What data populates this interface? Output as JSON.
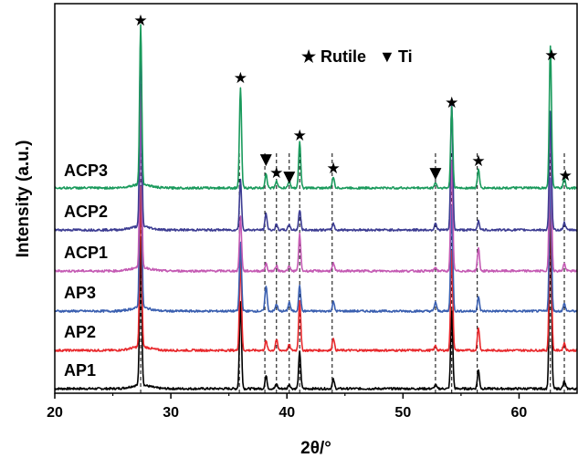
{
  "chart_data": {
    "type": "line",
    "title": "",
    "xlabel": "2θ/°",
    "ylabel": "Intensity (a.u.)",
    "xlim": [
      20,
      65
    ],
    "xticks": [
      20,
      30,
      40,
      50,
      60
    ],
    "yticks_shown": false,
    "legend": {
      "placement": "top-center",
      "entries": [
        {
          "symbol": "★",
          "label": "Rutile"
        },
        {
          "symbol": "▼",
          "label": "Ti"
        }
      ]
    },
    "reference_lines_2theta": [
      27.4,
      35.9,
      38.1,
      39.1,
      40.2,
      41.1,
      43.9,
      52.8,
      54.2,
      56.4,
      62.7,
      63.9
    ],
    "phase_markers": [
      {
        "symbol": "★",
        "phase": "Rutile",
        "x": 27.4
      },
      {
        "symbol": "★",
        "phase": "Rutile",
        "x": 36.0
      },
      {
        "symbol": "▼",
        "phase": "Ti",
        "x": 38.2
      },
      {
        "symbol": "★",
        "phase": "Rutile",
        "x": 39.1
      },
      {
        "symbol": "▼",
        "phase": "Ti",
        "x": 40.2
      },
      {
        "symbol": "★",
        "phase": "Rutile",
        "x": 41.1
      },
      {
        "symbol": "★",
        "phase": "Rutile",
        "x": 44.0
      },
      {
        "symbol": "▼",
        "phase": "Ti",
        "x": 52.8
      },
      {
        "symbol": "★",
        "phase": "Rutile",
        "x": 54.2
      },
      {
        "symbol": "★",
        "phase": "Rutile",
        "x": 56.5
      },
      {
        "symbol": "★",
        "phase": "Rutile",
        "x": 62.8
      },
      {
        "symbol": "★",
        "phase": "Rutile",
        "x": 64.0
      }
    ],
    "series": [
      {
        "name": "AP1",
        "color": "#000000",
        "peaks": [
          [
            27.4,
            160
          ],
          [
            36.0,
            95
          ],
          [
            38.2,
            14
          ],
          [
            39.1,
            5
          ],
          [
            40.2,
            5
          ],
          [
            41.1,
            40
          ],
          [
            44.0,
            10
          ],
          [
            52.8,
            4
          ],
          [
            54.2,
            85
          ],
          [
            56.5,
            20
          ],
          [
            62.7,
            190
          ],
          [
            63.9,
            8
          ]
        ]
      },
      {
        "name": "AP2",
        "color": "#e8282c",
        "peaks": [
          [
            27.4,
            175
          ],
          [
            36.0,
            100
          ],
          [
            38.2,
            10
          ],
          [
            39.1,
            12
          ],
          [
            40.2,
            6
          ],
          [
            41.1,
            55
          ],
          [
            44.0,
            14
          ],
          [
            52.8,
            5
          ],
          [
            54.2,
            110
          ],
          [
            56.5,
            25
          ],
          [
            62.7,
            170
          ],
          [
            63.9,
            8
          ]
        ]
      },
      {
        "name": "AP3",
        "color": "#3a5fb0",
        "peaks": [
          [
            27.4,
            225
          ],
          [
            36.0,
            75
          ],
          [
            38.2,
            28
          ],
          [
            39.1,
            8
          ],
          [
            40.2,
            10
          ],
          [
            41.1,
            28
          ],
          [
            44.0,
            10
          ],
          [
            52.8,
            10
          ],
          [
            54.2,
            115
          ],
          [
            56.5,
            15
          ],
          [
            62.7,
            145
          ],
          [
            63.9,
            8
          ]
        ]
      },
      {
        "name": "ACP1",
        "color": "#c45ab3",
        "peaks": [
          [
            27.4,
            200
          ],
          [
            36.0,
            60
          ],
          [
            38.2,
            8
          ],
          [
            39.1,
            6
          ],
          [
            40.2,
            5
          ],
          [
            41.1,
            40
          ],
          [
            44.0,
            8
          ],
          [
            52.8,
            4
          ],
          [
            54.2,
            120
          ],
          [
            56.5,
            25
          ],
          [
            62.7,
            170
          ],
          [
            63.9,
            8
          ]
        ]
      },
      {
        "name": "ACP2",
        "color": "#3c3c92",
        "peaks": [
          [
            27.4,
            210
          ],
          [
            36.0,
            55
          ],
          [
            38.2,
            18
          ],
          [
            39.1,
            6
          ],
          [
            40.2,
            6
          ],
          [
            41.1,
            22
          ],
          [
            44.0,
            7
          ],
          [
            52.8,
            8
          ],
          [
            54.2,
            140
          ],
          [
            56.5,
            10
          ],
          [
            62.7,
            130
          ],
          [
            63.9,
            8
          ]
        ]
      },
      {
        "name": "ACP3",
        "color": "#1a9a5c",
        "peaks": [
          [
            27.4,
            175
          ],
          [
            36.0,
            110
          ],
          [
            38.2,
            16
          ],
          [
            39.1,
            8
          ],
          [
            40.2,
            8
          ],
          [
            41.1,
            50
          ],
          [
            44.0,
            12
          ],
          [
            52.8,
            6
          ],
          [
            54.2,
            88
          ],
          [
            56.5,
            20
          ],
          [
            62.7,
            155
          ],
          [
            63.9,
            10
          ]
        ]
      }
    ]
  }
}
